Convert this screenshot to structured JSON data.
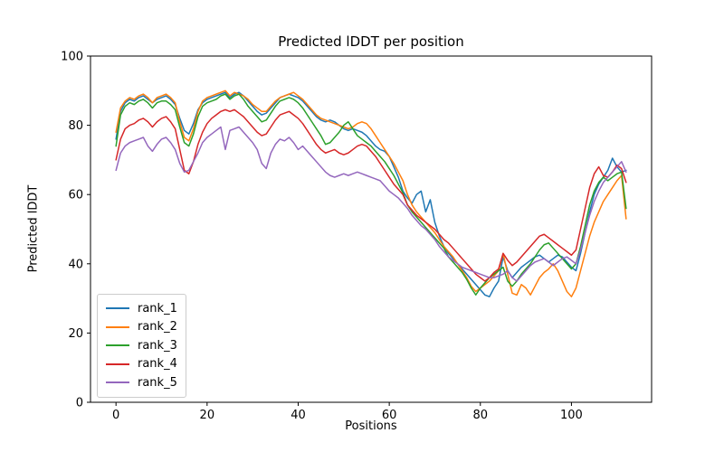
{
  "chart_data": {
    "type": "line",
    "title": "Predicted lDDT per position",
    "xlabel": "Positions",
    "ylabel": "Predicted lDDT",
    "xlim": [
      -5.6,
      117.6
    ],
    "ylim": [
      0,
      100
    ],
    "xticks": [
      0,
      20,
      40,
      60,
      80,
      100
    ],
    "yticks": [
      0,
      20,
      40,
      60,
      80,
      100
    ],
    "grid": false,
    "legend_position": "lower left",
    "x_start": 0,
    "x_step": 1,
    "series": [
      {
        "name": "rank_1",
        "color": "#1f77b4",
        "values": [
          76,
          84,
          86.5,
          87.5,
          87,
          88,
          88.5,
          87.5,
          86.5,
          87.5,
          88,
          88.5,
          87.5,
          86,
          82,
          78.5,
          77.5,
          80.5,
          84.5,
          86.5,
          87.5,
          88,
          88.5,
          89,
          89.5,
          88,
          89,
          89.5,
          88.5,
          87,
          85.5,
          84,
          83,
          83.5,
          85,
          86.5,
          88,
          88.5,
          89,
          88.5,
          88,
          87,
          85.5,
          84,
          82.5,
          81.5,
          81,
          81.5,
          81,
          80,
          79,
          78.5,
          79,
          78.5,
          78,
          77,
          75.5,
          74,
          73,
          72.5,
          71,
          68,
          65,
          61,
          59,
          57.5,
          60,
          61,
          55,
          58.5,
          52,
          48,
          45,
          43,
          41.5,
          40,
          38.5,
          37,
          35.5,
          34,
          32.5,
          31,
          30.5,
          33,
          35,
          42,
          38,
          36,
          37.5,
          39,
          40,
          41,
          42,
          42.5,
          41.5,
          40.5,
          41.5,
          42.5,
          42,
          40.5,
          39,
          38,
          43,
          49,
          55,
          60,
          63,
          65,
          67,
          70.5,
          68,
          66.5,
          67
        ]
      },
      {
        "name": "rank_2",
        "color": "#ff7f0e",
        "values": [
          78,
          85,
          87,
          88,
          87.5,
          88.5,
          89,
          88,
          86.5,
          88,
          88.5,
          89,
          88,
          86.5,
          81,
          76.5,
          75.5,
          79,
          84,
          87,
          88,
          88.5,
          89,
          89.5,
          90,
          88.5,
          89.5,
          89,
          88.5,
          87.5,
          86,
          85,
          84,
          84,
          85.5,
          87,
          88,
          88.5,
          89,
          89.5,
          88.5,
          87.5,
          86,
          84.5,
          83,
          82,
          81.5,
          81,
          80.5,
          80,
          79.5,
          79,
          79.5,
          80.5,
          81,
          80.5,
          79,
          77,
          75,
          73,
          71,
          69,
          66.5,
          64,
          60,
          57,
          55,
          53.5,
          52,
          50.5,
          49,
          47,
          45,
          43.5,
          42,
          40,
          38,
          36,
          33.5,
          32,
          33,
          34,
          35,
          36.5,
          38,
          43,
          37,
          31.5,
          31,
          34,
          33,
          31,
          33.5,
          36,
          37.5,
          38.5,
          40,
          38,
          35,
          32,
          30.5,
          33,
          38,
          43,
          48,
          52,
          55,
          58,
          60,
          62,
          64,
          65.5,
          53
        ]
      },
      {
        "name": "rank_3",
        "color": "#2ca02c",
        "values": [
          74,
          83,
          85.5,
          86.5,
          86,
          87,
          87.5,
          86.5,
          85,
          86.5,
          87,
          87,
          86,
          84.5,
          79.5,
          75,
          74,
          77.5,
          82.5,
          85.5,
          86.5,
          87,
          87.5,
          88.5,
          89,
          87.5,
          88.5,
          89,
          87.5,
          85.5,
          84,
          82.5,
          81,
          81.5,
          83.5,
          85.5,
          87,
          87.5,
          88,
          87.5,
          86.5,
          85,
          83,
          81,
          79,
          77,
          74.5,
          75,
          76.5,
          78,
          80,
          81,
          79,
          77,
          76,
          75,
          74,
          72.5,
          71,
          69.5,
          67.5,
          65.5,
          63,
          60.5,
          57,
          55,
          53.5,
          52,
          50.5,
          49,
          47.5,
          46,
          44.5,
          42,
          40.5,
          39,
          37.5,
          35.5,
          33,
          31,
          33,
          34.5,
          36,
          37,
          38,
          39,
          35,
          33.5,
          35,
          37,
          38.5,
          40,
          42,
          44,
          45.5,
          46,
          44.5,
          43,
          41.5,
          40,
          38.5,
          40,
          45,
          51,
          57,
          61,
          63.5,
          65,
          64,
          65,
          66,
          66.5,
          56
        ]
      },
      {
        "name": "rank_4",
        "color": "#d62728",
        "values": [
          70,
          76,
          79,
          80,
          80.5,
          81.5,
          82,
          81,
          79.5,
          81,
          82,
          82.5,
          81,
          79,
          73,
          67,
          66,
          69.5,
          74.5,
          78,
          80.5,
          82,
          83,
          84,
          84.5,
          84,
          84.5,
          83.5,
          82.5,
          81,
          79.5,
          78,
          77,
          77.5,
          79.5,
          81.5,
          83,
          83.5,
          84,
          83,
          82,
          80.5,
          78.5,
          76.5,
          74.5,
          73,
          72,
          72.5,
          73,
          72,
          71.5,
          72,
          73,
          74,
          74.5,
          74,
          72.5,
          71,
          69,
          67,
          65,
          63,
          61.5,
          60,
          57,
          55.5,
          54,
          53,
          52,
          51,
          50,
          48.5,
          47,
          46,
          44.5,
          43,
          41.5,
          40,
          38.5,
          37,
          36,
          35,
          36,
          37.5,
          38.5,
          43,
          41,
          39.5,
          40.5,
          42,
          43.5,
          45,
          46.5,
          48,
          48.5,
          47.5,
          46.5,
          45.5,
          44.5,
          43.5,
          42.5,
          44,
          50,
          56,
          62,
          66,
          68,
          65.5,
          65,
          66.5,
          68.5,
          67.5,
          63.5
        ]
      },
      {
        "name": "rank_5",
        "color": "#9467bd",
        "values": [
          67,
          72,
          74,
          75,
          75.5,
          76,
          76.5,
          74,
          72.5,
          74.5,
          76,
          76.5,
          75,
          73,
          69,
          66.5,
          67,
          69.5,
          72,
          75,
          76.5,
          77.5,
          78.5,
          79.5,
          73,
          78.5,
          79,
          79.5,
          78,
          76.5,
          75,
          73,
          69,
          67.5,
          72,
          74.5,
          76,
          75.5,
          76.5,
          75,
          73,
          74,
          72.5,
          71,
          69.5,
          68,
          66.5,
          65.5,
          65,
          65.5,
          66,
          65.5,
          66,
          66.5,
          66,
          65.5,
          65,
          64.5,
          64,
          62.5,
          61,
          60,
          59,
          57.5,
          56,
          54,
          52.5,
          51,
          50,
          48.5,
          47,
          45,
          43.5,
          42,
          41,
          40,
          39,
          38.5,
          38,
          37.5,
          37,
          36.5,
          36,
          36,
          36.5,
          37,
          38,
          36,
          35,
          36.5,
          38,
          39.5,
          40.5,
          41,
          41.5,
          40.5,
          39.5,
          40.5,
          41.5,
          42,
          41,
          40,
          44,
          49,
          54,
          58,
          61,
          63.5,
          65,
          66.5,
          68,
          69.5,
          66.5
        ]
      }
    ]
  }
}
